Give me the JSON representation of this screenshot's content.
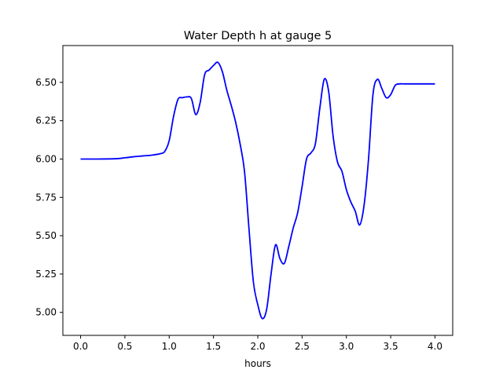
{
  "chart_data": {
    "type": "line",
    "title": "Water Depth h at gauge 5",
    "xlabel": "hours",
    "ylabel": "",
    "xlim": [
      -0.2,
      4.2
    ],
    "ylim": [
      4.85,
      6.74
    ],
    "xticks": [
      0.0,
      0.5,
      1.0,
      1.5,
      2.0,
      2.5,
      3.0,
      3.5,
      4.0
    ],
    "xtick_labels": [
      "0.0",
      "0.5",
      "1.0",
      "1.5",
      "2.0",
      "2.5",
      "3.0",
      "3.5",
      "4.0"
    ],
    "yticks": [
      5.0,
      5.25,
      5.5,
      5.75,
      6.0,
      6.25,
      6.5
    ],
    "ytick_labels": [
      "5.00",
      "5.25",
      "5.50",
      "5.75",
      "6.00",
      "6.25",
      "6.50"
    ],
    "grid": false,
    "series": [
      {
        "color": "#0000ff",
        "x": [
          0.0,
          0.2,
          0.4,
          0.5,
          0.6,
          0.7,
          0.8,
          0.9,
          0.95,
          1.0,
          1.05,
          1.1,
          1.15,
          1.2,
          1.25,
          1.3,
          1.35,
          1.4,
          1.45,
          1.5,
          1.55,
          1.6,
          1.65,
          1.7,
          1.75,
          1.8,
          1.85,
          1.9,
          1.95,
          2.0,
          2.05,
          2.1,
          2.15,
          2.2,
          2.25,
          2.3,
          2.35,
          2.4,
          2.45,
          2.5,
          2.55,
          2.6,
          2.65,
          2.7,
          2.75,
          2.8,
          2.85,
          2.9,
          2.95,
          3.0,
          3.05,
          3.1,
          3.15,
          3.2,
          3.25,
          3.3,
          3.35,
          3.4,
          3.45,
          3.5,
          3.55,
          3.6,
          3.65,
          3.7,
          3.75,
          3.8,
          3.85,
          3.9,
          3.95,
          4.0
        ],
        "y": [
          6.0,
          6.0,
          6.002,
          6.008,
          6.015,
          6.02,
          6.025,
          6.035,
          6.05,
          6.12,
          6.28,
          6.39,
          6.4,
          6.405,
          6.395,
          6.29,
          6.37,
          6.55,
          6.58,
          6.61,
          6.63,
          6.57,
          6.45,
          6.35,
          6.24,
          6.1,
          5.92,
          5.55,
          5.2,
          5.05,
          4.96,
          5.02,
          5.25,
          5.44,
          5.35,
          5.32,
          5.43,
          5.55,
          5.65,
          5.82,
          6.0,
          6.04,
          6.1,
          6.33,
          6.52,
          6.44,
          6.15,
          5.98,
          5.92,
          5.8,
          5.72,
          5.66,
          5.57,
          5.7,
          6.0,
          6.42,
          6.52,
          6.46,
          6.4,
          6.42,
          6.48,
          6.49,
          6.49,
          6.49,
          6.49,
          6.49,
          6.49,
          6.49,
          6.49,
          6.49
        ]
      }
    ]
  }
}
